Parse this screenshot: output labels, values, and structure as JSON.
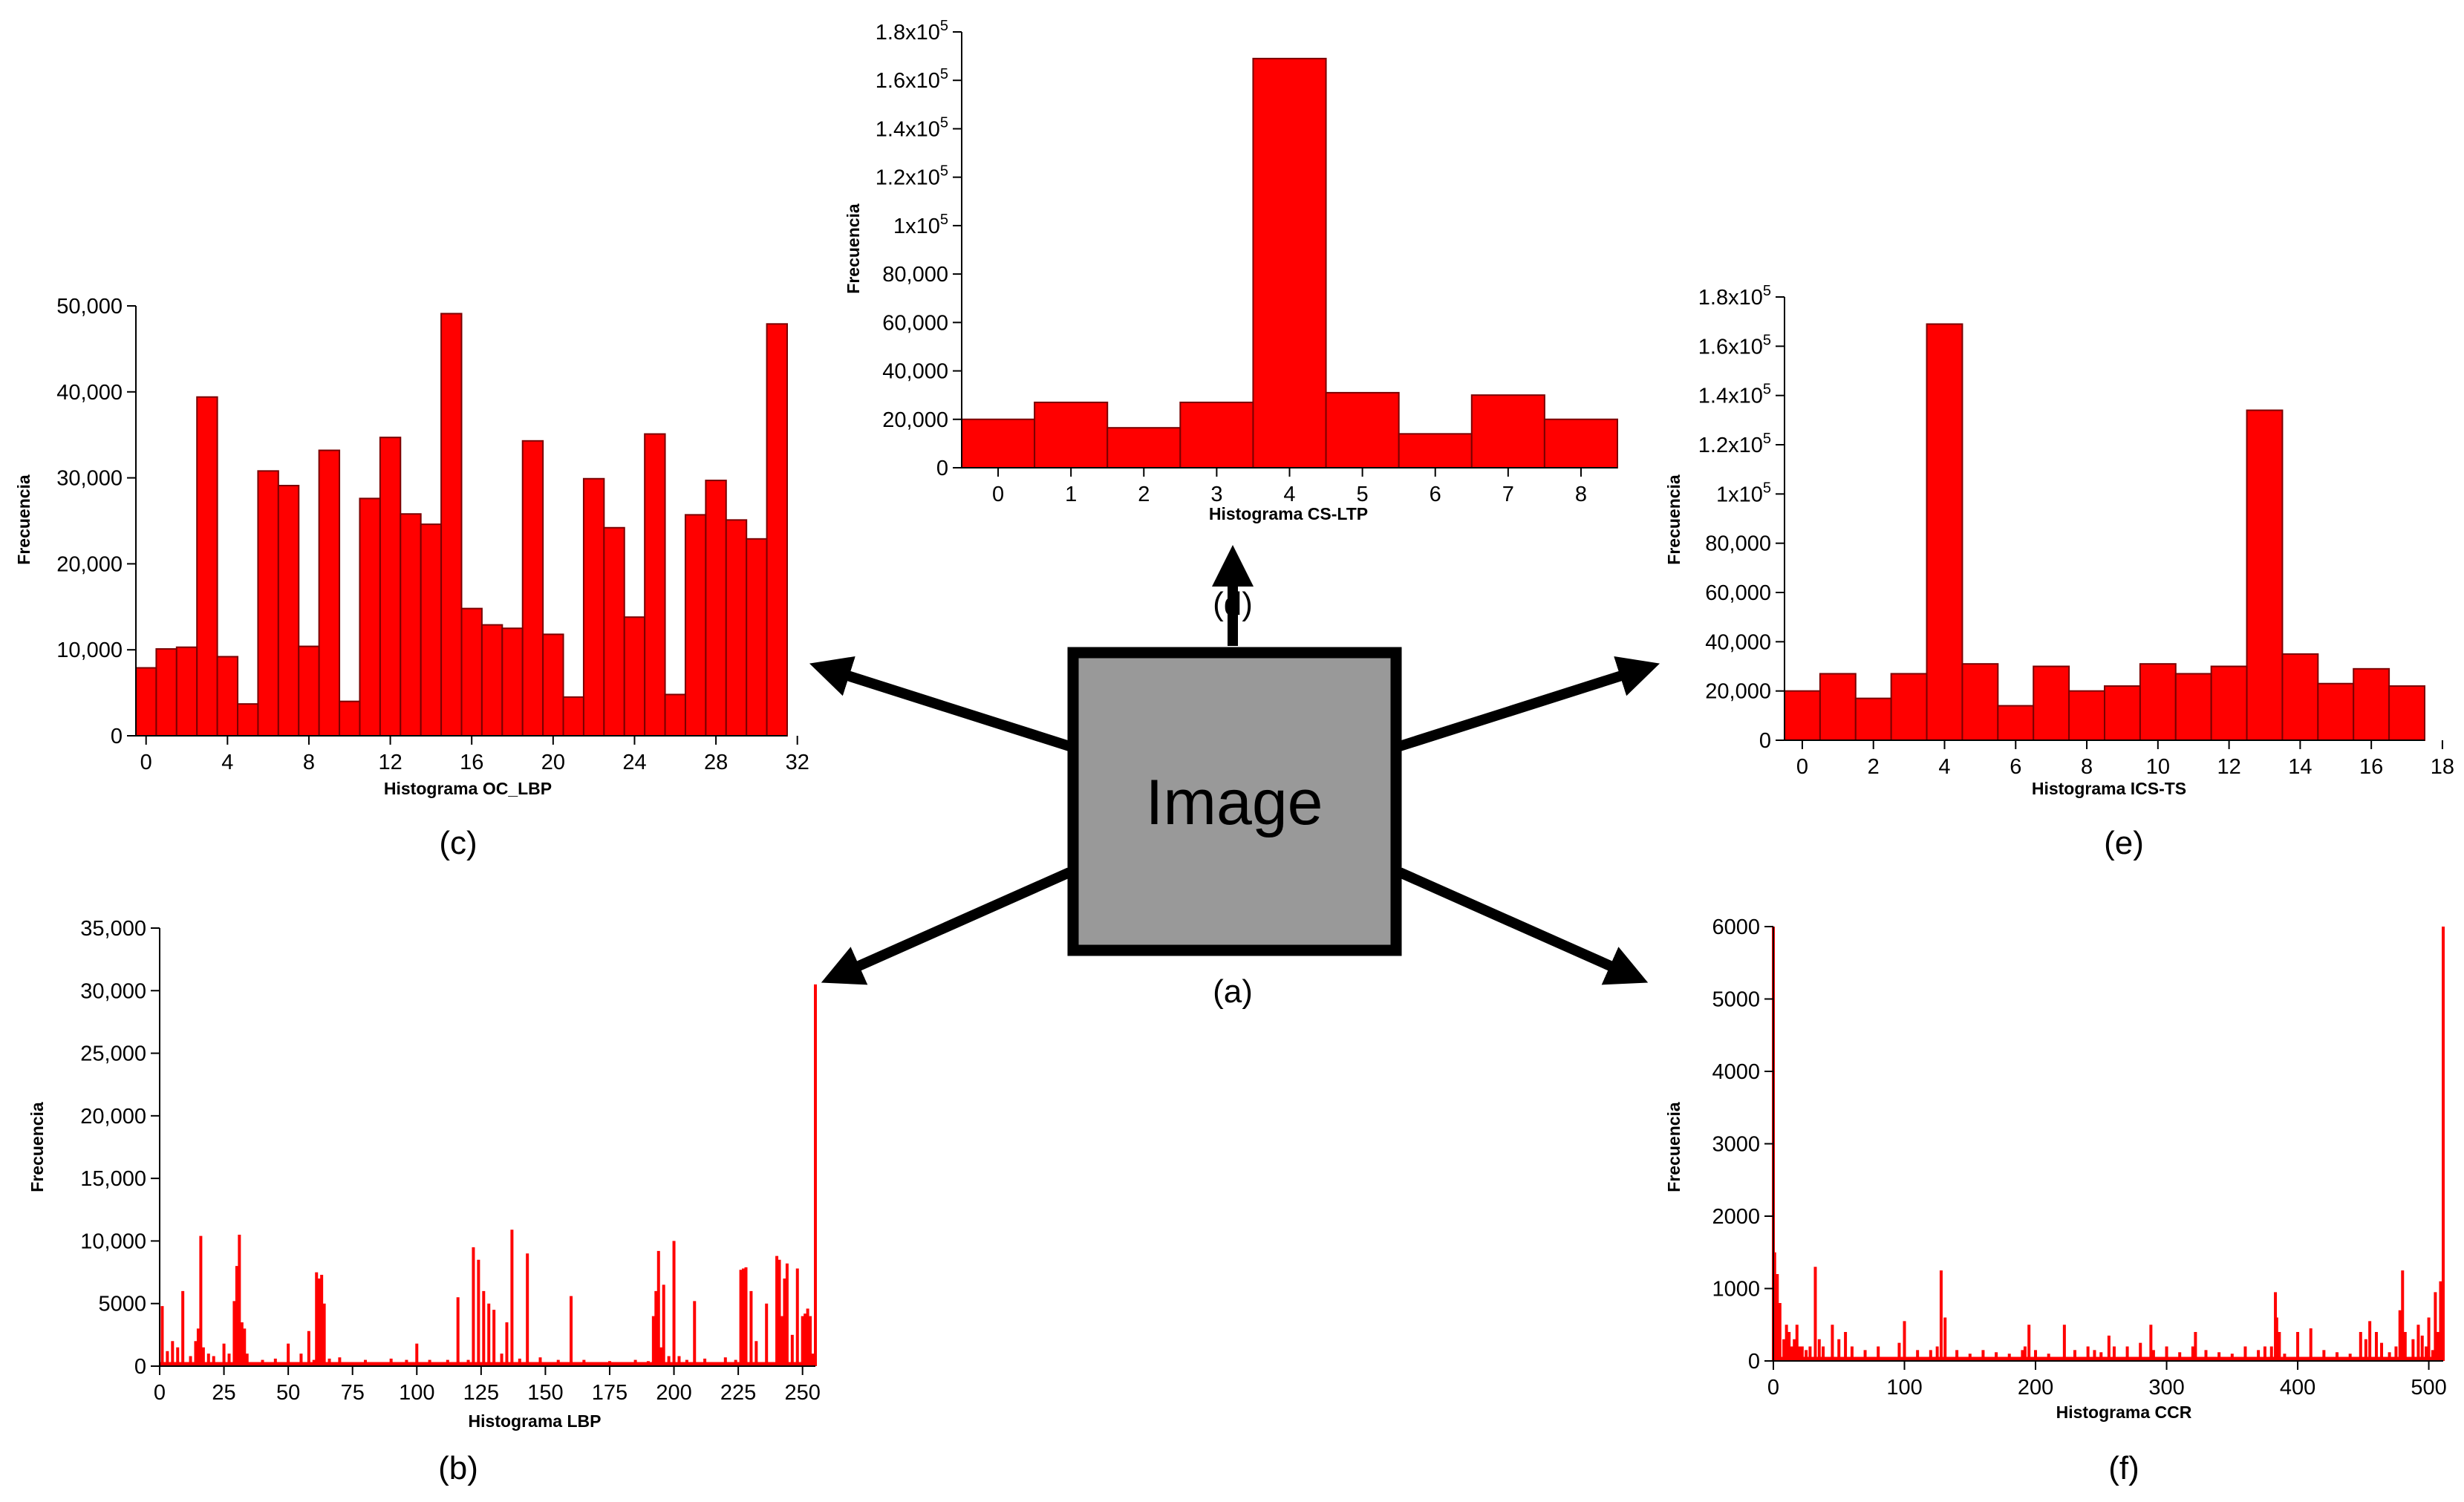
{
  "center": {
    "label": "Image",
    "caption": "(a)",
    "fill": "#999999"
  },
  "colors": {
    "bar": "#ff0000",
    "bar_edge": "#7a0000",
    "spike": "#ff0000"
  },
  "chart_data": [
    {
      "id": "lbp",
      "type": "bar",
      "caption": "(b)",
      "xlabel": "Histograma LBP",
      "ylabel": "Frecuencia",
      "xlim": [
        0,
        255
      ],
      "ylim": [
        0,
        35000
      ],
      "xticks": [
        {
          "v": 0,
          "t": "0"
        },
        {
          "v": 25,
          "t": "25"
        },
        {
          "v": 50,
          "t": "50"
        },
        {
          "v": 75,
          "t": "75"
        },
        {
          "v": 100,
          "t": "100"
        },
        {
          "v": 125,
          "t": "125"
        },
        {
          "v": 150,
          "t": "150"
        },
        {
          "v": 175,
          "t": "175"
        },
        {
          "v": 200,
          "t": "200"
        },
        {
          "v": 225,
          "t": "225"
        },
        {
          "v": 250,
          "t": "250"
        }
      ],
      "yticks": [
        {
          "v": 0,
          "t": "0"
        },
        {
          "v": 5000,
          "t": "5000"
        },
        {
          "v": 10000,
          "t": "10,000"
        },
        {
          "v": 15000,
          "t": "15,000"
        },
        {
          "v": 20000,
          "t": "20,000"
        },
        {
          "v": 25000,
          "t": "25,000"
        },
        {
          "v": 30000,
          "t": "30,000"
        },
        {
          "v": 35000,
          "t": "35,000"
        }
      ],
      "x": [
        1,
        3,
        5,
        7,
        9,
        12,
        14,
        15,
        16,
        17,
        19,
        21,
        25,
        27,
        29,
        30,
        31,
        32,
        33,
        34,
        40,
        45,
        50,
        55,
        58,
        60,
        61,
        62,
        63,
        64,
        66,
        70,
        80,
        90,
        96,
        100,
        105,
        112,
        116,
        120,
        122,
        124,
        126,
        128,
        130,
        133,
        135,
        137,
        140,
        143,
        148,
        155,
        160,
        165,
        175,
        185,
        190,
        192,
        193,
        194,
        195,
        196,
        198,
        200,
        202,
        205,
        208,
        212,
        220,
        224,
        226,
        227,
        228,
        230,
        232,
        236,
        240,
        241,
        242,
        243,
        244,
        246,
        248,
        250,
        251,
        252,
        253,
        254,
        255
      ],
      "values": [
        4800,
        1200,
        2000,
        1500,
        6000,
        800,
        2000,
        3000,
        10400,
        1500,
        1000,
        800,
        1800,
        1000,
        5200,
        8000,
        10500,
        3500,
        3000,
        1000,
        500,
        600,
        1800,
        1000,
        2800,
        500,
        7500,
        7000,
        7300,
        5000,
        600,
        700,
        500,
        600,
        500,
        1800,
        500,
        500,
        5500,
        500,
        9500,
        8500,
        6000,
        5000,
        4500,
        1000,
        3500,
        10900,
        600,
        9000,
        700,
        500,
        5600,
        500,
        400,
        500,
        400,
        4000,
        6000,
        9200,
        1500,
        6500,
        800,
        10000,
        800,
        500,
        5200,
        600,
        700,
        500,
        7700,
        7800,
        7900,
        6000,
        2000,
        5000,
        8800,
        8500,
        4000,
        7000,
        8200,
        2500,
        7800,
        4000,
        4200,
        4600,
        4000,
        1000,
        30500
      ]
    },
    {
      "id": "oc_lbp",
      "type": "bar",
      "caption": "(c)",
      "xlabel": "Histograma OC_LBP",
      "ylabel": "Frecuencia",
      "xlim": [
        -0.5,
        31.5
      ],
      "ylim": [
        0,
        50000
      ],
      "xticks": [
        {
          "v": 0,
          "t": "0"
        },
        {
          "v": 4,
          "t": "4"
        },
        {
          "v": 8,
          "t": "8"
        },
        {
          "v": 12,
          "t": "12"
        },
        {
          "v": 16,
          "t": "16"
        },
        {
          "v": 20,
          "t": "20"
        },
        {
          "v": 24,
          "t": "24"
        },
        {
          "v": 28,
          "t": "28"
        },
        {
          "v": 32,
          "t": "32"
        }
      ],
      "yticks": [
        {
          "v": 0,
          "t": "0"
        },
        {
          "v": 10000,
          "t": "10,000"
        },
        {
          "v": 20000,
          "t": "20,000"
        },
        {
          "v": 30000,
          "t": "30,000"
        },
        {
          "v": 40000,
          "t": "40,000"
        },
        {
          "v": 50000,
          "t": "50,000"
        }
      ],
      "categories": [
        0,
        1,
        2,
        3,
        4,
        5,
        6,
        7,
        8,
        9,
        10,
        11,
        12,
        13,
        14,
        15,
        16,
        17,
        18,
        19,
        20,
        21,
        22,
        23,
        24,
        25,
        26,
        27,
        28,
        29,
        30,
        31
      ],
      "values": [
        7900,
        10100,
        10300,
        39400,
        9200,
        3700,
        30800,
        29100,
        10400,
        33200,
        4000,
        27600,
        34700,
        25800,
        24600,
        49100,
        14800,
        12900,
        12500,
        34300,
        11800,
        4500,
        29900,
        24200,
        13800,
        35100,
        4800,
        25700,
        29700,
        25100,
        22900,
        47900
      ]
    },
    {
      "id": "cs_ltp",
      "type": "bar",
      "caption": "(d)",
      "xlabel": "Histograma CS-LTP",
      "ylabel": "Frecuencia",
      "xlim": [
        -0.5,
        8.5
      ],
      "ylim": [
        0,
        180000
      ],
      "xticks": [
        {
          "v": 0,
          "t": "0"
        },
        {
          "v": 1,
          "t": "1"
        },
        {
          "v": 2,
          "t": "2"
        },
        {
          "v": 3,
          "t": "3"
        },
        {
          "v": 4,
          "t": "4"
        },
        {
          "v": 5,
          "t": "5"
        },
        {
          "v": 6,
          "t": "6"
        },
        {
          "v": 7,
          "t": "7"
        },
        {
          "v": 8,
          "t": "8"
        }
      ],
      "yticks": [
        {
          "v": 0,
          "t": "0"
        },
        {
          "v": 20000,
          "t": "20,000"
        },
        {
          "v": 40000,
          "t": "40,000"
        },
        {
          "v": 60000,
          "t": "60,000"
        },
        {
          "v": 80000,
          "t": "80,000"
        },
        {
          "v": 100000,
          "t": "1x10",
          "sup": "5"
        },
        {
          "v": 120000,
          "t": "1.2x10",
          "sup": "5"
        },
        {
          "v": 140000,
          "t": "1.4x10",
          "sup": "5"
        },
        {
          "v": 160000,
          "t": "1.6x10",
          "sup": "5"
        },
        {
          "v": 180000,
          "t": "1.8x10",
          "sup": "5"
        }
      ],
      "categories": [
        0,
        1,
        2,
        3,
        4,
        5,
        6,
        7,
        8
      ],
      "values": [
        20000,
        27000,
        16500,
        27000,
        169000,
        31000,
        14000,
        30000,
        20000
      ]
    },
    {
      "id": "ics_ts",
      "type": "bar",
      "caption": "(e)",
      "xlabel": "Histograma ICS-TS",
      "ylabel": "Frecuencia",
      "xlim": [
        -0.5,
        17.5
      ],
      "ylim": [
        0,
        180000
      ],
      "xticks": [
        {
          "v": 0,
          "t": "0"
        },
        {
          "v": 2,
          "t": "2"
        },
        {
          "v": 4,
          "t": "4"
        },
        {
          "v": 6,
          "t": "6"
        },
        {
          "v": 8,
          "t": "8"
        },
        {
          "v": 10,
          "t": "10"
        },
        {
          "v": 12,
          "t": "12"
        },
        {
          "v": 14,
          "t": "14"
        },
        {
          "v": 16,
          "t": "16"
        },
        {
          "v": 18,
          "t": "18"
        }
      ],
      "yticks": [
        {
          "v": 0,
          "t": "0"
        },
        {
          "v": 20000,
          "t": "20,000"
        },
        {
          "v": 40000,
          "t": "40,000"
        },
        {
          "v": 60000,
          "t": "60,000"
        },
        {
          "v": 80000,
          "t": "80,000"
        },
        {
          "v": 100000,
          "t": "1x10",
          "sup": "5"
        },
        {
          "v": 120000,
          "t": "1.2x10",
          "sup": "5"
        },
        {
          "v": 140000,
          "t": "1.4x10",
          "sup": "5"
        },
        {
          "v": 160000,
          "t": "1.6x10",
          "sup": "5"
        },
        {
          "v": 180000,
          "t": "1.8x10",
          "sup": "5"
        }
      ],
      "categories": [
        0,
        1,
        2,
        3,
        4,
        5,
        6,
        7,
        8,
        9,
        10,
        11,
        12,
        13,
        14,
        15,
        16,
        17
      ],
      "values": [
        20000,
        27000,
        17000,
        27000,
        169000,
        31000,
        14000,
        30000,
        20000,
        22000,
        31000,
        27000,
        30000,
        134000,
        35000,
        23000,
        29000,
        22000
      ]
    },
    {
      "id": "ccr",
      "type": "bar",
      "caption": "(f)",
      "xlabel": "Histograma CCR",
      "ylabel": "Frecuencia",
      "xlim": [
        0,
        511
      ],
      "ylim": [
        0,
        6000
      ],
      "xticks": [
        {
          "v": 0,
          "t": "0"
        },
        {
          "v": 100,
          "t": "100"
        },
        {
          "v": 200,
          "t": "200"
        },
        {
          "v": 300,
          "t": "300"
        },
        {
          "v": 400,
          "t": "400"
        },
        {
          "v": 500,
          "t": "500"
        }
      ],
      "yticks": [
        {
          "v": 0,
          "t": "0"
        },
        {
          "v": 1000,
          "t": "1000"
        },
        {
          "v": 2000,
          "t": "2000"
        },
        {
          "v": 3000,
          "t": "3000"
        },
        {
          "v": 4000,
          "t": "4000"
        },
        {
          "v": 5000,
          "t": "5000"
        },
        {
          "v": 6000,
          "t": "6000"
        }
      ],
      "x": [
        0,
        1,
        3,
        5,
        8,
        10,
        12,
        14,
        16,
        18,
        20,
        22,
        25,
        28,
        32,
        35,
        38,
        45,
        50,
        55,
        60,
        70,
        80,
        96,
        100,
        110,
        120,
        125,
        128,
        131,
        140,
        150,
        160,
        170,
        180,
        190,
        192,
        195,
        200,
        210,
        222,
        230,
        240,
        245,
        250,
        256,
        260,
        270,
        280,
        288,
        290,
        300,
        310,
        320,
        322,
        330,
        340,
        350,
        360,
        370,
        375,
        380,
        383,
        384,
        386,
        390,
        400,
        410,
        420,
        430,
        440,
        448,
        452,
        455,
        460,
        464,
        470,
        475,
        478,
        480,
        482,
        488,
        492,
        495,
        498,
        500,
        503,
        505,
        507,
        509,
        511
      ],
      "values": [
        6000,
        1500,
        1200,
        800,
        300,
        500,
        400,
        200,
        300,
        500,
        200,
        200,
        150,
        200,
        1300,
        300,
        200,
        500,
        300,
        400,
        200,
        150,
        200,
        250,
        550,
        150,
        150,
        200,
        1250,
        600,
        150,
        100,
        150,
        120,
        100,
        150,
        200,
        500,
        150,
        100,
        500,
        150,
        200,
        150,
        120,
        350,
        200,
        200,
        250,
        500,
        150,
        200,
        120,
        200,
        400,
        150,
        120,
        100,
        200,
        150,
        200,
        200,
        950,
        600,
        400,
        100,
        400,
        450,
        150,
        120,
        100,
        400,
        300,
        550,
        400,
        250,
        120,
        200,
        700,
        1250,
        400,
        300,
        500,
        350,
        200,
        600,
        150,
        950,
        400,
        1100,
        6000
      ]
    }
  ]
}
